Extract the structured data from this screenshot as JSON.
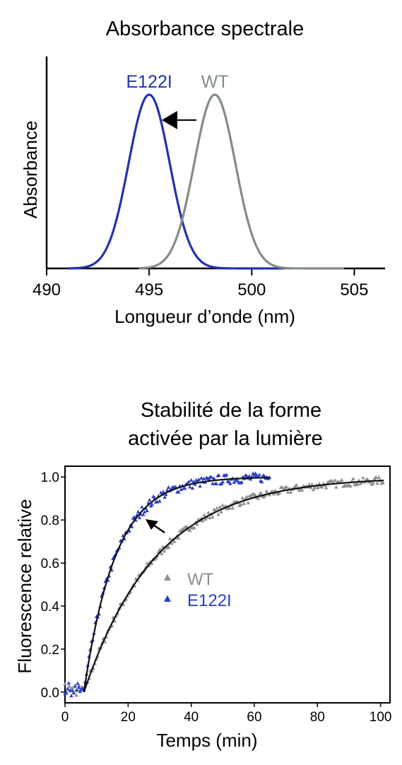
{
  "chart_data": [
    {
      "type": "line",
      "title": "Absorbance spectrale",
      "xlabel": "Longueur d’onde (nm)",
      "ylabel": "Absorbance",
      "xlim": [
        490,
        506.5
      ],
      "ylim": [
        0,
        1
      ],
      "xticks": [
        "490",
        "495",
        "500",
        "505"
      ],
      "grid": false,
      "legend": "labels above peaks",
      "annotation": "arrow pointing from WT peak toward E122I peak",
      "series": [
        {
          "name": "E122I",
          "color": "#2233aa",
          "center": 495.0,
          "sigma": 1.0,
          "x_range": [
            491,
            501.5
          ],
          "peak": 1.0
        },
        {
          "name": "WT",
          "color": "#838c8a",
          "center": 498.2,
          "sigma": 1.0,
          "x_range": [
            494.5,
            504.5
          ],
          "peak": 1.0
        }
      ]
    },
    {
      "type": "scatter",
      "title": "Stabilité de la forme activée par la lumière",
      "xlabel": "Temps (min)",
      "ylabel": "Fluorescence relative",
      "xlim": [
        0,
        103
      ],
      "ylim": [
        -0.05,
        1.05
      ],
      "xticks": [
        "0",
        "20",
        "40",
        "60",
        "80",
        "100"
      ],
      "yticks": [
        "0.0",
        "0.2",
        "0.4",
        "0.6",
        "0.8",
        "1.0"
      ],
      "grid": false,
      "legend": "center",
      "annotation": "arrow pointing toward E122I curve",
      "series": [
        {
          "name": "WT",
          "color": "#8a8f8d",
          "marker": "triangle",
          "t0": 6,
          "tau": 23,
          "x_range": [
            0,
            101
          ],
          "fit_color": "#111111"
        },
        {
          "name": "E122I",
          "color": "#2a3fc4",
          "marker": "triangle",
          "t0": 6,
          "tau": 10,
          "x_range": [
            0,
            65
          ],
          "fit_color": "#111111"
        }
      ]
    }
  ]
}
